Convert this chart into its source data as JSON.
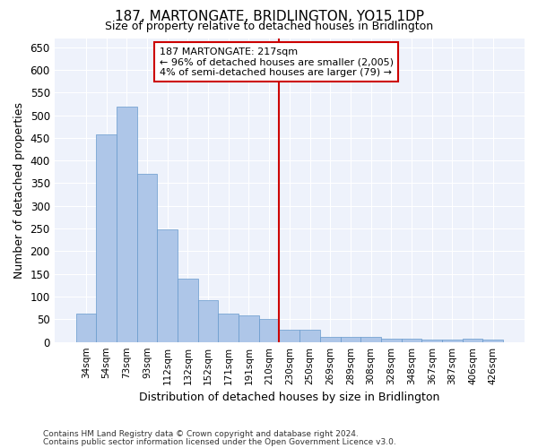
{
  "title": "187, MARTONGATE, BRIDLINGTON, YO15 1DP",
  "subtitle": "Size of property relative to detached houses in Bridlington",
  "xlabel": "Distribution of detached houses by size in Bridlington",
  "ylabel": "Number of detached properties",
  "bar_color": "#aec6e8",
  "bar_edge_color": "#6699cc",
  "background_color": "#eef2fb",
  "grid_color": "#ffffff",
  "fig_bg_color": "#ffffff",
  "categories": [
    "34sqm",
    "54sqm",
    "73sqm",
    "93sqm",
    "112sqm",
    "132sqm",
    "152sqm",
    "171sqm",
    "191sqm",
    "210sqm",
    "230sqm",
    "250sqm",
    "269sqm",
    "289sqm",
    "308sqm",
    "328sqm",
    "348sqm",
    "367sqm",
    "387sqm",
    "406sqm",
    "426sqm"
  ],
  "values": [
    63,
    458,
    519,
    370,
    248,
    140,
    93,
    63,
    58,
    50,
    27,
    27,
    11,
    12,
    12,
    8,
    8,
    5,
    5,
    8,
    5
  ],
  "vline_x": 9.5,
  "vline_color": "#cc0000",
  "annotation_text": "187 MARTONGATE: 217sqm\n← 96% of detached houses are smaller (2,005)\n4% of semi-detached houses are larger (79) →",
  "annotation_box_color": "#ffffff",
  "annotation_box_edge": "#cc0000",
  "footnote1": "Contains HM Land Registry data © Crown copyright and database right 2024.",
  "footnote2": "Contains public sector information licensed under the Open Government Licence v3.0.",
  "ylim": [
    0,
    670
  ],
  "yticks": [
    0,
    50,
    100,
    150,
    200,
    250,
    300,
    350,
    400,
    450,
    500,
    550,
    600,
    650
  ]
}
